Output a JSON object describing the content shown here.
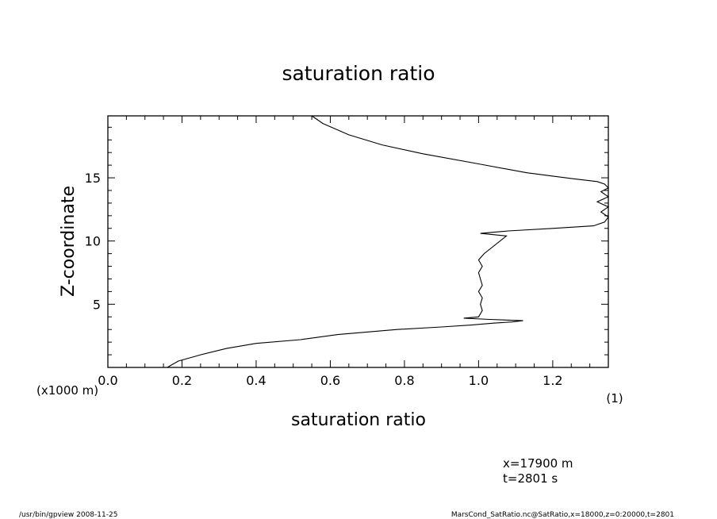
{
  "chart_data": {
    "type": "line",
    "title": "saturation ratio",
    "xlabel": "saturation ratio",
    "ylabel": "Z-coordinate",
    "y_unit": "(x1000 m)",
    "x_unit": "(1)",
    "xlim": [
      0.0,
      1.35
    ],
    "ylim": [
      0,
      19.9
    ],
    "x_ticks": [
      "0.0",
      "0.2",
      "0.4",
      "0.6",
      "0.8",
      "1.0",
      "1.2"
    ],
    "y_ticks": [
      "5",
      "10",
      "15"
    ],
    "series": [
      {
        "x": [
          0.16,
          0.19,
          0.25,
          0.32,
          0.4,
          0.52,
          0.62,
          0.78,
          0.9,
          0.98,
          1.04,
          1.09,
          1.12,
          1.03,
          0.96,
          1.0,
          1.01,
          1.005,
          1.01,
          1.0,
          1.01,
          1.005,
          1.0,
          1.01,
          1.0,
          1.015,
          1.075,
          1.005,
          1.08,
          1.2,
          1.31,
          1.34,
          1.35,
          1.33,
          1.35,
          1.32,
          1.35,
          1.33,
          1.36,
          1.34,
          1.32,
          1.25,
          1.13,
          1.0,
          0.85,
          0.74,
          0.65,
          0.58,
          0.55
        ],
        "y": [
          0.0,
          0.5,
          1.0,
          1.5,
          1.9,
          2.2,
          2.6,
          3.0,
          3.2,
          3.35,
          3.5,
          3.6,
          3.7,
          3.8,
          3.9,
          4.0,
          4.5,
          5.0,
          5.5,
          6.0,
          6.5,
          7.0,
          7.5,
          8.0,
          8.5,
          9.0,
          10.4,
          10.6,
          10.8,
          11.0,
          11.2,
          11.5,
          11.9,
          12.3,
          12.7,
          13.1,
          13.5,
          13.9,
          14.2,
          14.5,
          14.7,
          14.95,
          15.4,
          16.1,
          16.9,
          17.6,
          18.4,
          19.3,
          19.9
        ]
      }
    ]
  },
  "annotations": {
    "x_line": "x=17900  m",
    "t_line": "t=2801  s"
  },
  "footer": {
    "left": "/usr/bin/gpview   2008-11-25",
    "right": "MarsCond_SatRatio.nc@SatRatio,x=18000,z=0:20000,t=2801"
  }
}
